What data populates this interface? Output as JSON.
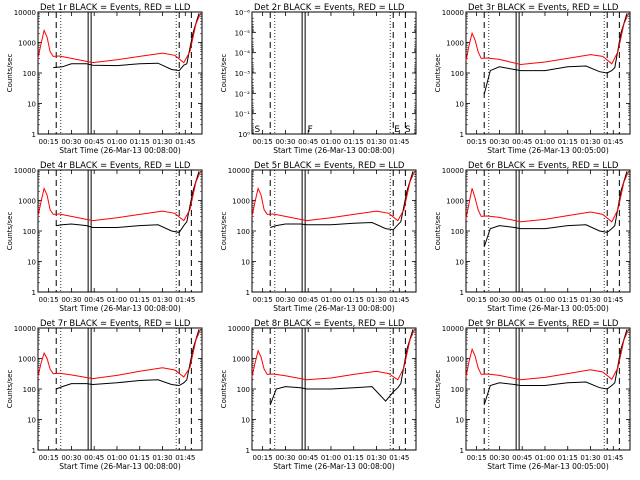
{
  "figure": {
    "x_tick_labels": [
      "00:15",
      "00:30",
      "00:45",
      "01:00",
      "01:15",
      "01:30",
      "01:45"
    ],
    "xlabel_prefix": "Start Time (26-Mar-13 00:0",
    "xlabel_suffix": ":00)",
    "ylabel": "Counts/sec",
    "colors": {
      "events": "#000000",
      "lld": "#ff0000"
    }
  },
  "chart_data": [
    {
      "type": "line",
      "panel": "Det 1r",
      "title": "Det 1r BLACK = Events, RED = LLD",
      "xlabel": "Start Time (26-Mar-13 00:08:00)",
      "ylabel": "Counts/sec",
      "y_scale": "log",
      "ylim": [
        1,
        10000
      ],
      "x_range_minutes": [
        8,
        116
      ],
      "x_ticks_minutes": [
        15,
        30,
        45,
        60,
        75,
        90,
        105
      ],
      "y_tick_labels": [
        "1",
        "10",
        "100",
        "1000",
        "10000"
      ],
      "series": [
        {
          "name": "BLACK = Events",
          "color": "#000000",
          "x": [
            18,
            24,
            30,
            40,
            44,
            60,
            75,
            87,
            96,
            101,
            104,
            106,
            110,
            114
          ],
          "y": [
            150,
            160,
            200,
            200,
            180,
            175,
            200,
            210,
            130,
            120,
            180,
            200,
            2000,
            9000
          ]
        },
        {
          "name": "RED = LLD",
          "color": "#ff0000",
          "x": [
            8,
            10,
            12,
            14,
            16,
            18,
            22,
            30,
            44,
            60,
            75,
            90,
            98,
            104,
            108,
            112,
            115
          ],
          "y": [
            300,
            900,
            2500,
            1500,
            500,
            350,
            360,
            300,
            220,
            270,
            350,
            450,
            380,
            220,
            500,
            4000,
            9000
          ]
        }
      ],
      "vlines_dashed": [
        20,
        101,
        109
      ],
      "vlines_dotted": [
        23,
        99
      ],
      "vlines_double": [
        42
      ]
    },
    {
      "type": "line",
      "panel": "Det 2r",
      "title": "Det 2r BLACK = Events, RED = LLD",
      "xlabel": "Start Time (26-Mar-13 00:08:00)",
      "ylabel": "Counts/sec",
      "y_scale": "log",
      "ylim": [
        1,
        1e-06
      ],
      "y_tick_labels": [
        "10⁻⁶",
        "10⁻⁵",
        "10⁻⁴",
        "10⁻³",
        "10⁻²",
        "10⁻¹",
        "10⁰"
      ],
      "series": [],
      "marker_labels": [
        "S",
        "F",
        "E",
        "S"
      ],
      "vlines_dashed": [
        20,
        101,
        109
      ],
      "vlines_dotted": [
        23,
        99
      ],
      "vlines_double": [
        42
      ]
    },
    {
      "type": "line",
      "panel": "Det 3r",
      "title": "Det 3r BLACK = Events, RED = LLD",
      "xlabel": "Start Time (26-Mar-13 00:05:00)",
      "ylabel": "Counts/sec",
      "y_scale": "log",
      "ylim": [
        1,
        10000
      ],
      "y_tick_labels": [
        "1",
        "10",
        "100",
        "1000",
        "10000"
      ],
      "series": [
        {
          "name": "BLACK = Events",
          "color": "#000000",
          "x": [
            20,
            24,
            30,
            40,
            44,
            60,
            75,
            87,
            96,
            101,
            104,
            106,
            110,
            114
          ],
          "y": [
            20,
            120,
            160,
            130,
            120,
            120,
            160,
            170,
            110,
            100,
            120,
            150,
            2000,
            9000
          ]
        },
        {
          "name": "RED = LLD",
          "color": "#ff0000",
          "x": [
            8,
            10,
            12,
            14,
            16,
            18,
            22,
            30,
            44,
            60,
            75,
            90,
            98,
            104,
            108,
            112,
            115
          ],
          "y": [
            250,
            800,
            2000,
            1200,
            500,
            300,
            310,
            280,
            190,
            230,
            300,
            400,
            350,
            200,
            500,
            4000,
            9000
          ]
        }
      ],
      "vlines_dashed": [
        20,
        101,
        109
      ],
      "vlines_dotted": [
        23,
        99
      ],
      "vlines_double": [
        42
      ]
    },
    {
      "type": "line",
      "panel": "Det 4r",
      "title": "Det 4r BLACK = Events, RED = LLD",
      "xlabel": "Start Time (26-Mar-13 00:08:00)",
      "ylabel": "Counts/sec",
      "y_scale": "log",
      "ylim": [
        1,
        10000
      ],
      "y_tick_labels": [
        "1",
        "10",
        "100",
        "1000",
        "10000"
      ],
      "series": [
        {
          "name": "BLACK = Events",
          "color": "#000000",
          "x": [
            20,
            24,
            30,
            40,
            44,
            60,
            75,
            87,
            96,
            101,
            104,
            106,
            110,
            114
          ],
          "y": [
            150,
            160,
            170,
            150,
            130,
            130,
            150,
            160,
            100,
            90,
            150,
            200,
            2000,
            9000
          ]
        },
        {
          "name": "RED = LLD",
          "color": "#ff0000",
          "x": [
            8,
            10,
            12,
            14,
            16,
            18,
            22,
            30,
            44,
            60,
            75,
            90,
            98,
            104,
            108,
            112,
            115
          ],
          "y": [
            300,
            900,
            2500,
            1500,
            500,
            350,
            360,
            300,
            220,
            270,
            350,
            450,
            380,
            220,
            500,
            4000,
            9000
          ]
        }
      ],
      "vlines_dashed": [
        20,
        101,
        109
      ],
      "vlines_dotted": [
        23,
        99
      ],
      "vlines_double": [
        42
      ]
    },
    {
      "type": "line",
      "panel": "Det 5r",
      "title": "Det 5r BLACK = Events, RED = LLD",
      "xlabel": "Start Time (26-Mar-13 00:08:00)",
      "ylabel": "Counts/sec",
      "y_scale": "log",
      "ylim": [
        1,
        10000
      ],
      "y_tick_labels": [
        "1",
        "10",
        "100",
        "1000",
        "10000"
      ],
      "series": [
        {
          "name": "BLACK = Events",
          "color": "#000000",
          "x": [
            20,
            24,
            30,
            40,
            44,
            60,
            75,
            87,
            96,
            101,
            104,
            106,
            110,
            114
          ],
          "y": [
            130,
            150,
            170,
            170,
            160,
            160,
            180,
            190,
            120,
            110,
            160,
            200,
            2000,
            9000
          ]
        },
        {
          "name": "RED = LLD",
          "color": "#ff0000",
          "x": [
            8,
            10,
            12,
            14,
            16,
            18,
            22,
            30,
            44,
            60,
            75,
            90,
            98,
            104,
            108,
            112,
            115
          ],
          "y": [
            300,
            900,
            2500,
            1500,
            500,
            350,
            360,
            300,
            220,
            270,
            350,
            450,
            380,
            220,
            500,
            4000,
            9000
          ]
        }
      ],
      "vlines_dashed": [
        20,
        101,
        109
      ],
      "vlines_dotted": [
        23,
        99
      ],
      "vlines_double": [
        42
      ]
    },
    {
      "type": "line",
      "panel": "Det 6r",
      "title": "Det 6r BLACK = Events, RED = LLD",
      "xlabel": "Start Time (26-Mar-13 00:05:00)",
      "ylabel": "Counts/sec",
      "y_scale": "log",
      "ylim": [
        1,
        10000
      ],
      "y_tick_labels": [
        "1",
        "10",
        "100",
        "1000",
        "10000"
      ],
      "series": [
        {
          "name": "BLACK = Events",
          "color": "#000000",
          "x": [
            20,
            24,
            30,
            40,
            44,
            60,
            75,
            87,
            96,
            101,
            104,
            106,
            110,
            114
          ],
          "y": [
            30,
            120,
            150,
            130,
            120,
            120,
            150,
            160,
            100,
            90,
            120,
            150,
            2000,
            9000
          ]
        },
        {
          "name": "RED = LLD",
          "color": "#ff0000",
          "x": [
            8,
            10,
            12,
            14,
            16,
            18,
            22,
            30,
            44,
            60,
            75,
            90,
            98,
            104,
            108,
            112,
            115
          ],
          "y": [
            250,
            800,
            2500,
            1200,
            500,
            300,
            310,
            280,
            200,
            240,
            320,
            420,
            350,
            200,
            500,
            4000,
            9000
          ]
        }
      ],
      "vlines_dashed": [
        20,
        101,
        109
      ],
      "vlines_dotted": [
        23,
        99
      ],
      "vlines_double": [
        42
      ]
    },
    {
      "type": "line",
      "panel": "Det 7r",
      "title": "Det 7r BLACK = Events, RED = LLD",
      "xlabel": "Start Time (26-Mar-13 00:08:00)",
      "ylabel": "Counts/sec",
      "y_scale": "log",
      "ylim": [
        1,
        10000
      ],
      "y_tick_labels": [
        "1",
        "10",
        "100",
        "1000",
        "10000"
      ],
      "series": [
        {
          "name": "BLACK = Events",
          "color": "#000000",
          "x": [
            20,
            24,
            30,
            40,
            44,
            60,
            75,
            87,
            96,
            101,
            104,
            106,
            110,
            114
          ],
          "y": [
            100,
            120,
            150,
            150,
            140,
            160,
            190,
            200,
            140,
            130,
            160,
            200,
            2000,
            9000
          ]
        },
        {
          "name": "RED = LLD",
          "color": "#ff0000",
          "x": [
            8,
            10,
            12,
            14,
            16,
            18,
            22,
            30,
            44,
            60,
            75,
            90,
            98,
            104,
            108,
            112,
            115
          ],
          "y": [
            250,
            700,
            1500,
            1000,
            450,
            320,
            330,
            290,
            220,
            280,
            380,
            500,
            420,
            250,
            500,
            4000,
            9000
          ]
        }
      ],
      "vlines_dashed": [
        20,
        101,
        109
      ],
      "vlines_dotted": [
        23,
        99
      ],
      "vlines_double": [
        42
      ]
    },
    {
      "type": "line",
      "panel": "Det 8r",
      "title": "Det 8r BLACK = Events, RED = LLD",
      "xlabel": "Start Time (26-Mar-13 00:08:00)",
      "ylabel": "Counts/sec",
      "y_scale": "log",
      "ylim": [
        1,
        10000
      ],
      "y_tick_labels": [
        "1",
        "10",
        "100",
        "1000",
        "10000"
      ],
      "series": [
        {
          "name": "BLACK = Events",
          "color": "#000000",
          "x": [
            20,
            24,
            30,
            40,
            44,
            60,
            75,
            87,
            96,
            101,
            104,
            106,
            110,
            114
          ],
          "y": [
            30,
            100,
            120,
            110,
            100,
            100,
            110,
            120,
            40,
            80,
            110,
            150,
            2000,
            9000
          ]
        },
        {
          "name": "RED = LLD",
          "color": "#ff0000",
          "x": [
            8,
            10,
            12,
            14,
            16,
            18,
            22,
            30,
            44,
            60,
            75,
            90,
            98,
            104,
            108,
            112,
            115
          ],
          "y": [
            250,
            700,
            1800,
            1100,
            450,
            300,
            310,
            270,
            200,
            230,
            300,
            380,
            320,
            200,
            500,
            4000,
            9000
          ]
        }
      ],
      "vlines_dashed": [
        20,
        101,
        109
      ],
      "vlines_dotted": [
        23,
        99
      ],
      "vlines_double": [
        42
      ]
    },
    {
      "type": "line",
      "panel": "Det 9r",
      "title": "Det 9r BLACK = Events, RED = LLD",
      "xlabel": "Start Time (26-Mar-13 00:05:00)",
      "ylabel": "Counts/sec",
      "y_scale": "log",
      "ylim": [
        1,
        10000
      ],
      "y_tick_labels": [
        "1",
        "10",
        "100",
        "1000",
        "10000"
      ],
      "series": [
        {
          "name": "BLACK = Events",
          "color": "#000000",
          "x": [
            20,
            24,
            30,
            40,
            44,
            60,
            75,
            87,
            96,
            101,
            104,
            106,
            110,
            114
          ],
          "y": [
            30,
            130,
            160,
            140,
            130,
            130,
            160,
            170,
            110,
            100,
            130,
            160,
            2000,
            9000
          ]
        },
        {
          "name": "RED = LLD",
          "color": "#ff0000",
          "x": [
            8,
            10,
            12,
            14,
            16,
            18,
            22,
            30,
            44,
            60,
            75,
            90,
            98,
            104,
            108,
            112,
            115
          ],
          "y": [
            250,
            800,
            2000,
            1200,
            500,
            300,
            310,
            280,
            200,
            240,
            320,
            430,
            360,
            210,
            500,
            4000,
            9000
          ]
        }
      ],
      "vlines_dashed": [
        20,
        101,
        109
      ],
      "vlines_dotted": [
        23,
        99
      ],
      "vlines_double": [
        42
      ]
    }
  ]
}
